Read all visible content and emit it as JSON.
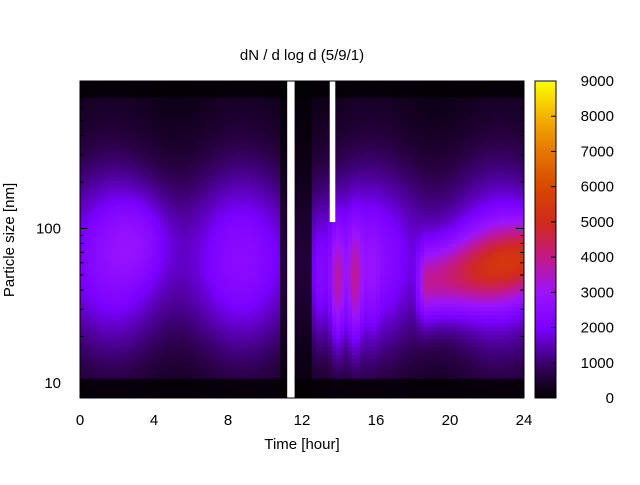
{
  "chart_data": {
    "type": "heatmap",
    "title": "dN / d log d (5/9/1)",
    "xlabel": "Time [hour]",
    "ylabel": "Particle size [nm]",
    "x_ticks": [
      0,
      4,
      8,
      12,
      16,
      20,
      24
    ],
    "xlim": [
      0,
      24
    ],
    "y_scale": "log",
    "y_ticks": [
      10,
      100
    ],
    "ylim": [
      8,
      900
    ],
    "colorbar": {
      "ticks": [
        0,
        1000,
        2000,
        3000,
        4000,
        5000,
        6000,
        7000,
        8000,
        9000
      ],
      "range": [
        0,
        9000
      ],
      "palette": "black-purple-red-yellow"
    },
    "features": [
      {
        "label": "background",
        "value_range": [
          300,
          2500
        ]
      },
      {
        "label": "morning hump",
        "time": [
          1.5,
          5
        ],
        "size_nm": [
          60,
          130
        ],
        "peak": 3200
      },
      {
        "label": "data gap",
        "time": [
          11.2,
          11.6
        ]
      },
      {
        "label": "data gap",
        "time": [
          13.5,
          13.8
        ],
        "size_nm_min": 110
      },
      {
        "label": "midday event",
        "time": [
          12.5,
          16
        ],
        "size_nm": [
          15,
          120
        ],
        "peak": 4500
      },
      {
        "label": "evening mode",
        "time": [
          18,
          24
        ],
        "size_nm": [
          25,
          110
        ],
        "peak": 5600
      }
    ]
  }
}
